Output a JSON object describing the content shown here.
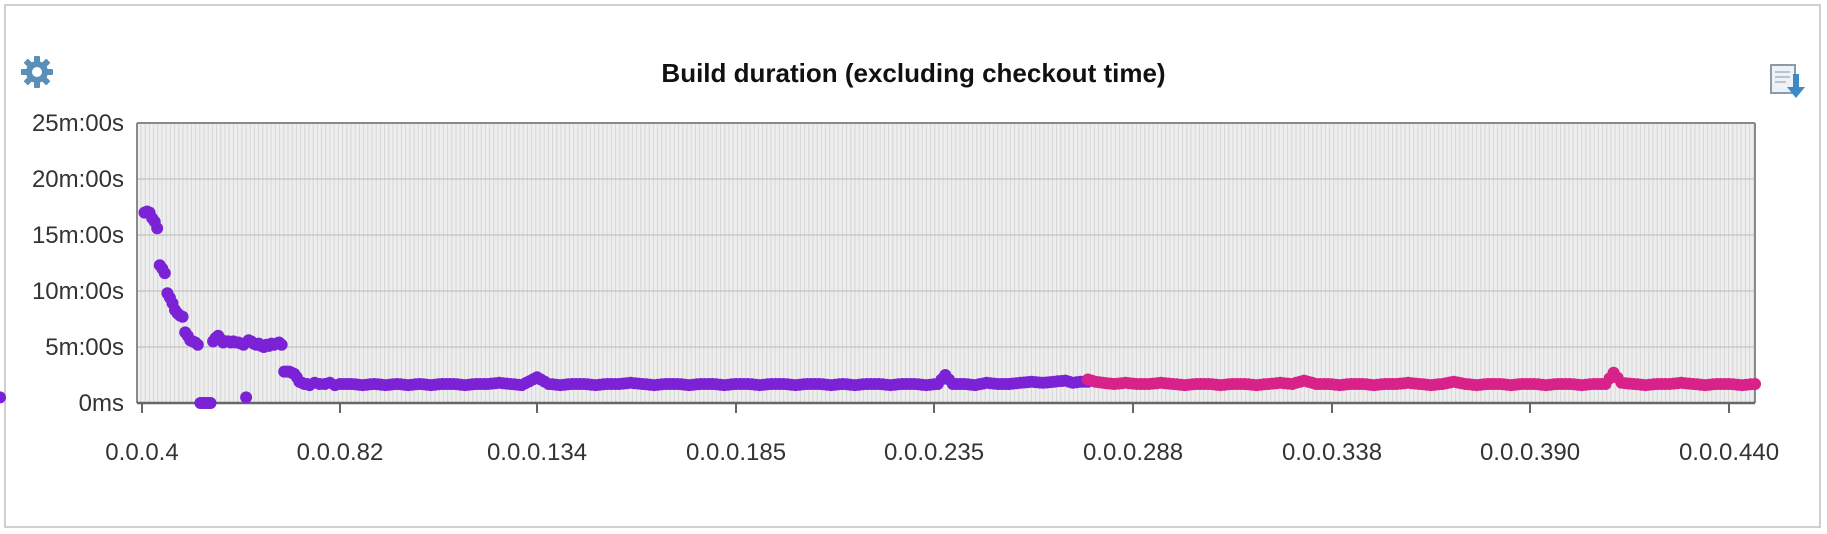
{
  "chart_data": {
    "type": "line",
    "title": "Build duration (excluding checkout time)",
    "xlabel": "",
    "ylabel": "",
    "y_unit": "minutes",
    "ylim": [
      0,
      25
    ],
    "y_ticks": [
      {
        "value": 0,
        "label": "0ms"
      },
      {
        "value": 5,
        "label": "5m:00s"
      },
      {
        "value": 10,
        "label": "10m:00s"
      },
      {
        "value": 15,
        "label": "15m:00s"
      },
      {
        "value": 20,
        "label": "20m:00s"
      },
      {
        "value": 25,
        "label": "25m:00s"
      }
    ],
    "x_ticks": [
      {
        "build": 4,
        "label": "0.0.0.4"
      },
      {
        "build": 82,
        "label": "0.0.0.82"
      },
      {
        "build": 134,
        "label": "0.0.0.134"
      },
      {
        "build": 185,
        "label": "0.0.0.185"
      },
      {
        "build": 235,
        "label": "0.0.0.235"
      },
      {
        "build": 288,
        "label": "0.0.0.288"
      },
      {
        "build": 338,
        "label": "0.0.0.338"
      },
      {
        "build": 390,
        "label": "0.0.0.390"
      },
      {
        "build": 440,
        "label": "0.0.0.440"
      }
    ],
    "xlim": [
      4,
      446
    ],
    "grid": true,
    "legend": "none",
    "series": [
      {
        "color": "#7b22d6",
        "points": [
          [
            4,
            0.5
          ],
          [
            5,
            17.0
          ],
          [
            6,
            17.1
          ],
          [
            7,
            17.0
          ],
          [
            8,
            16.5
          ],
          [
            9,
            16.2
          ],
          [
            10,
            15.6
          ],
          [
            11,
            12.3
          ],
          [
            12,
            12.0
          ],
          [
            13,
            11.6
          ],
          [
            14,
            9.8
          ],
          [
            15,
            9.4
          ],
          [
            16,
            8.9
          ],
          [
            17,
            8.3
          ],
          [
            18,
            8.0
          ],
          [
            19,
            7.8
          ],
          [
            20,
            7.7
          ],
          [
            21,
            6.3
          ],
          [
            22,
            6.0
          ],
          [
            23,
            5.6
          ],
          [
            24,
            5.5
          ],
          [
            25,
            5.4
          ],
          [
            26,
            5.2
          ],
          [
            27,
            0.0
          ],
          [
            28,
            0.0
          ],
          [
            29,
            0.0
          ],
          [
            30,
            0.0
          ],
          [
            31,
            0.0
          ],
          [
            32,
            5.5
          ],
          [
            33,
            5.8
          ],
          [
            34,
            6.0
          ],
          [
            35,
            5.7
          ],
          [
            36,
            5.4
          ],
          [
            37,
            5.5
          ],
          [
            38,
            5.5
          ],
          [
            39,
            5.4
          ],
          [
            40,
            5.5
          ],
          [
            41,
            5.4
          ],
          [
            42,
            5.4
          ],
          [
            43,
            5.3
          ],
          [
            44,
            5.2
          ],
          [
            45,
            0.5
          ],
          [
            46,
            5.6
          ],
          [
            47,
            5.5
          ],
          [
            48,
            5.3
          ],
          [
            49,
            5.2
          ],
          [
            50,
            5.3
          ],
          [
            51,
            5.1
          ],
          [
            52,
            5.0
          ],
          [
            53,
            5.2
          ],
          [
            54,
            5.1
          ],
          [
            55,
            5.3
          ],
          [
            56,
            5.2
          ],
          [
            57,
            5.3
          ],
          [
            58,
            5.4
          ],
          [
            59,
            5.2
          ],
          [
            60,
            2.8
          ],
          [
            61,
            2.8
          ],
          [
            62,
            2.8
          ],
          [
            63,
            2.7
          ],
          [
            64,
            2.6
          ],
          [
            65,
            2.3
          ],
          [
            66,
            1.9
          ],
          [
            67,
            1.8
          ],
          [
            68,
            1.7
          ],
          [
            69,
            1.7
          ],
          [
            70,
            1.6
          ],
          [
            72,
            1.8
          ],
          [
            74,
            1.7
          ],
          [
            76,
            1.7
          ],
          [
            78,
            1.8
          ],
          [
            80,
            1.6
          ],
          [
            82,
            1.7
          ],
          [
            85,
            1.7
          ],
          [
            88,
            1.6
          ],
          [
            91,
            1.7
          ],
          [
            94,
            1.6
          ],
          [
            97,
            1.7
          ],
          [
            100,
            1.6
          ],
          [
            103,
            1.7
          ],
          [
            106,
            1.6
          ],
          [
            109,
            1.7
          ],
          [
            112,
            1.7
          ],
          [
            115,
            1.6
          ],
          [
            118,
            1.7
          ],
          [
            121,
            1.7
          ],
          [
            124,
            1.8
          ],
          [
            127,
            1.7
          ],
          [
            130,
            1.6
          ],
          [
            134,
            2.3
          ],
          [
            137,
            1.7
          ],
          [
            140,
            1.6
          ],
          [
            143,
            1.7
          ],
          [
            146,
            1.7
          ],
          [
            149,
            1.6
          ],
          [
            152,
            1.7
          ],
          [
            155,
            1.7
          ],
          [
            158,
            1.8
          ],
          [
            161,
            1.7
          ],
          [
            164,
            1.6
          ],
          [
            167,
            1.7
          ],
          [
            170,
            1.7
          ],
          [
            173,
            1.6
          ],
          [
            176,
            1.7
          ],
          [
            179,
            1.7
          ],
          [
            182,
            1.6
          ],
          [
            185,
            1.7
          ],
          [
            188,
            1.7
          ],
          [
            191,
            1.6
          ],
          [
            194,
            1.7
          ],
          [
            197,
            1.7
          ],
          [
            200,
            1.6
          ],
          [
            203,
            1.7
          ],
          [
            206,
            1.7
          ],
          [
            209,
            1.6
          ],
          [
            212,
            1.7
          ],
          [
            215,
            1.6
          ],
          [
            218,
            1.7
          ],
          [
            221,
            1.7
          ],
          [
            224,
            1.6
          ],
          [
            227,
            1.7
          ],
          [
            230,
            1.7
          ],
          [
            233,
            1.6
          ],
          [
            236,
            1.7
          ],
          [
            238,
            2.5
          ],
          [
            240,
            1.7
          ],
          [
            243,
            1.7
          ],
          [
            246,
            1.6
          ],
          [
            249,
            1.8
          ],
          [
            252,
            1.7
          ],
          [
            255,
            1.7
          ],
          [
            258,
            1.8
          ],
          [
            261,
            1.9
          ],
          [
            264,
            1.8
          ],
          [
            267,
            1.9
          ],
          [
            270,
            2.0
          ],
          [
            272,
            1.8
          ],
          [
            274,
            1.9
          ],
          [
            276,
            1.9
          ]
        ]
      },
      {
        "color": "#d8228a",
        "points": [
          [
            276,
            2.1
          ],
          [
            278,
            1.9
          ],
          [
            280,
            1.8
          ],
          [
            283,
            1.7
          ],
          [
            286,
            1.8
          ],
          [
            289,
            1.7
          ],
          [
            292,
            1.7
          ],
          [
            295,
            1.8
          ],
          [
            298,
            1.7
          ],
          [
            301,
            1.6
          ],
          [
            304,
            1.7
          ],
          [
            307,
            1.7
          ],
          [
            310,
            1.6
          ],
          [
            313,
            1.7
          ],
          [
            316,
            1.7
          ],
          [
            319,
            1.6
          ],
          [
            322,
            1.7
          ],
          [
            325,
            1.8
          ],
          [
            328,
            1.7
          ],
          [
            331,
            2.0
          ],
          [
            334,
            1.7
          ],
          [
            337,
            1.7
          ],
          [
            340,
            1.6
          ],
          [
            343,
            1.7
          ],
          [
            346,
            1.7
          ],
          [
            349,
            1.6
          ],
          [
            352,
            1.7
          ],
          [
            355,
            1.7
          ],
          [
            358,
            1.8
          ],
          [
            361,
            1.7
          ],
          [
            364,
            1.6
          ],
          [
            367,
            1.7
          ],
          [
            370,
            1.9
          ],
          [
            373,
            1.7
          ],
          [
            376,
            1.6
          ],
          [
            379,
            1.7
          ],
          [
            382,
            1.7
          ],
          [
            385,
            1.6
          ],
          [
            388,
            1.7
          ],
          [
            391,
            1.7
          ],
          [
            394,
            1.6
          ],
          [
            397,
            1.7
          ],
          [
            400,
            1.7
          ],
          [
            403,
            1.6
          ],
          [
            406,
            1.7
          ],
          [
            409,
            1.7
          ],
          [
            411,
            2.7
          ],
          [
            413,
            1.8
          ],
          [
            416,
            1.7
          ],
          [
            419,
            1.6
          ],
          [
            422,
            1.7
          ],
          [
            425,
            1.7
          ],
          [
            428,
            1.8
          ],
          [
            431,
            1.7
          ],
          [
            434,
            1.6
          ],
          [
            437,
            1.7
          ],
          [
            440,
            1.7
          ],
          [
            443,
            1.6
          ],
          [
            446,
            1.7
          ]
        ]
      }
    ]
  },
  "icons": {
    "settings": "gear-icon",
    "export": "export-download-icon",
    "accent": "#4a90c8"
  }
}
